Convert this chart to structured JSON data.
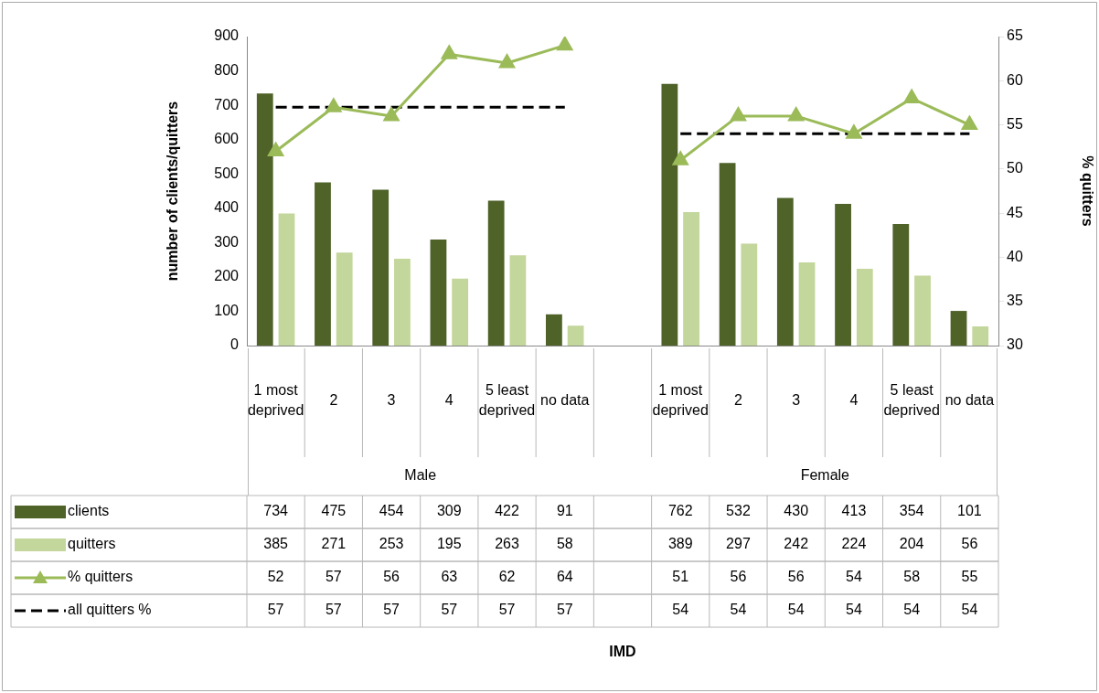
{
  "chart_data": {
    "type": "bar",
    "categories": [
      "1 most deprived",
      "2",
      "3",
      "4",
      "5 least deprived",
      "no data",
      null,
      "1 most deprived",
      "2",
      "3",
      "4",
      "5 least deprived",
      "no data"
    ],
    "series": [
      {
        "name": "clients",
        "color": "#4f6228",
        "values": [
          734,
          475,
          454,
          309,
          422,
          91,
          null,
          762,
          532,
          430,
          413,
          354,
          101
        ]
      },
      {
        "name": "quitters",
        "color": "#c3d69b",
        "values": [
          385,
          271,
          253,
          195,
          263,
          58,
          null,
          389,
          297,
          242,
          224,
          204,
          56
        ]
      },
      {
        "name": "% quitters",
        "type": "line",
        "axis": "y2",
        "color": "#9bbb59",
        "marker": "triangle",
        "line_style": "solid",
        "values": [
          52,
          57,
          56,
          63,
          62,
          64,
          null,
          51,
          56,
          56,
          54,
          58,
          55
        ]
      },
      {
        "name": "all quitters %",
        "type": "line",
        "axis": "y2",
        "color": "#000000",
        "marker": "none",
        "line_style": "dashed",
        "values": [
          57,
          57,
          57,
          57,
          57,
          57,
          null,
          54,
          54,
          54,
          54,
          54,
          54
        ]
      }
    ],
    "annotations": [
      "Male",
      "Female",
      "IMD"
    ],
    "ylabel": "number of clients/quitters",
    "y2label": "% quitters",
    "ylim": [
      0,
      900
    ],
    "yticks": [
      0,
      100,
      200,
      300,
      400,
      500,
      600,
      700,
      800,
      900
    ],
    "y2lim": [
      30,
      65
    ],
    "y2ticks": [
      30,
      35,
      40,
      45,
      50,
      55,
      60,
      65
    ],
    "data_labels": true,
    "legend": "bottom left",
    "grid": false
  }
}
